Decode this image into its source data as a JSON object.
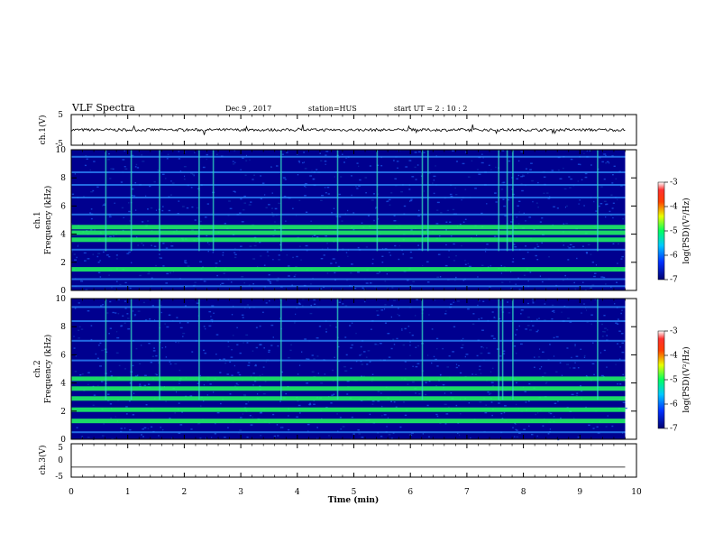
{
  "header": {
    "title": "VLF Spectra",
    "date": "Dec.9 , 2017",
    "station": "station=HUS",
    "start": "start  UT =   2  : 10 : 2"
  },
  "chart_data": [
    {
      "type": "line",
      "panel": "ch1-waveform",
      "ylabel": "ch.1(V)",
      "ylim": [
        -5,
        5
      ],
      "yticks": [
        "5",
        "-5"
      ],
      "xlim": [
        0,
        10
      ],
      "baseline": 0,
      "amplitude_note": "noisy trace around 0 V with small spikes",
      "trace_end": 9.8
    },
    {
      "type": "heatmap",
      "panel": "ch1-spectrogram",
      "ylabel": "ch.1",
      "ylabel2": "Frequency (kHz)",
      "ylim": [
        0,
        10
      ],
      "yticks": [
        "0",
        "2",
        "4",
        "6",
        "8",
        "10"
      ],
      "xlim": [
        0,
        10
      ],
      "trace_end": 9.8,
      "colorbar": {
        "label": "log(PSD)(V²/Hz)",
        "range": [
          -7,
          -3
        ],
        "ticks": [
          "-3",
          "-4",
          "-5",
          "-6",
          "-7"
        ]
      },
      "bands_khz": [
        0.3,
        0.8,
        1.5,
        2.9,
        3.6,
        4.1,
        4.5,
        5.4,
        6.6,
        7.5,
        8.4,
        9.5
      ],
      "strong_bands_khz": [
        1.5,
        3.6,
        4.1,
        4.5
      ],
      "impulses_min": [
        0.6,
        1.05,
        1.55,
        2.25,
        2.5,
        3.7,
        4.7,
        5.4,
        6.2,
        6.3,
        7.55,
        7.7,
        7.8,
        9.3
      ]
    },
    {
      "type": "heatmap",
      "panel": "ch2-spectrogram",
      "ylabel": "ch.2",
      "ylabel2": "Frequency (kHz)",
      "ylim": [
        0,
        10
      ],
      "yticks": [
        "0",
        "2",
        "4",
        "6",
        "8",
        "10"
      ],
      "xlim": [
        0,
        10
      ],
      "trace_end": 9.8,
      "colorbar": {
        "label": "log(PSD)(V²/Hz)",
        "range": [
          -7,
          -3
        ],
        "ticks": [
          "-3",
          "-4",
          "-5",
          "-6",
          "-7"
        ]
      },
      "bands_khz": [
        0.5,
        1.3,
        2.1,
        2.9,
        3.6,
        4.3,
        5.6,
        7.0,
        8.4,
        9.4
      ],
      "strong_bands_khz": [
        1.3,
        2.1,
        2.9,
        3.6,
        4.3
      ],
      "impulses_min": [
        0.6,
        1.05,
        1.55,
        2.25,
        3.7,
        4.7,
        6.2,
        7.55,
        7.62,
        7.8,
        9.3
      ]
    },
    {
      "type": "line",
      "panel": "ch3-waveform",
      "ylabel": "ch.3(V)",
      "ylim": [
        -5,
        5
      ],
      "yticks": [
        "5",
        "0",
        "-5"
      ],
      "xlim": [
        0,
        10
      ],
      "baseline": -2,
      "trace_end": 9.8
    }
  ],
  "xaxis": {
    "label": "Time  (min)",
    "ticks": [
      "0",
      "1",
      "2",
      "3",
      "4",
      "5",
      "6",
      "7",
      "8",
      "9",
      "10"
    ]
  },
  "colors": {
    "background": "#00008f",
    "band_strong": "#20ff60",
    "band_weak": "#2f8fff",
    "impulse": "#30d8c0",
    "trace": "#000000"
  }
}
